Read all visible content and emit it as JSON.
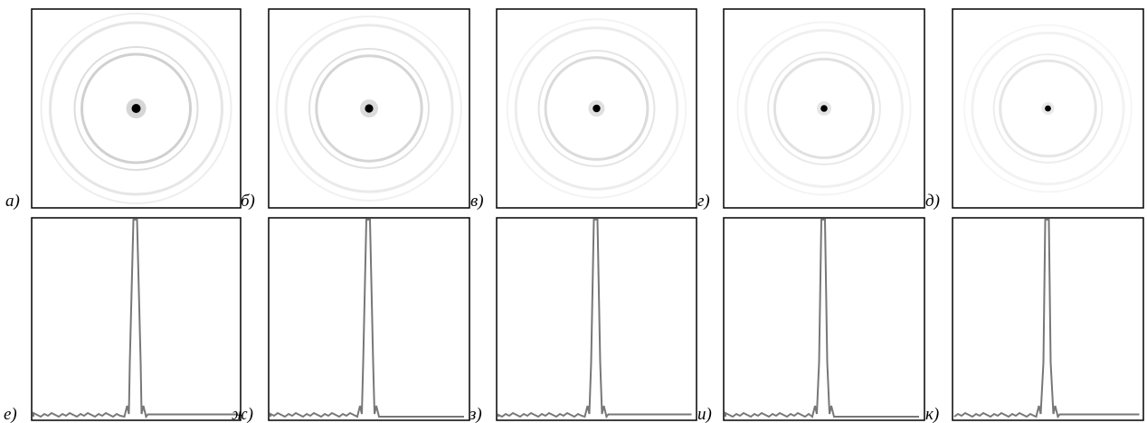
{
  "top_row": {
    "labels": [
      "а)",
      "б)",
      "в)",
      "г)",
      "д)"
    ]
  },
  "bottom_row": {
    "labels": [
      "е)",
      "ж)",
      "з)",
      "и)",
      "к)"
    ]
  }
}
